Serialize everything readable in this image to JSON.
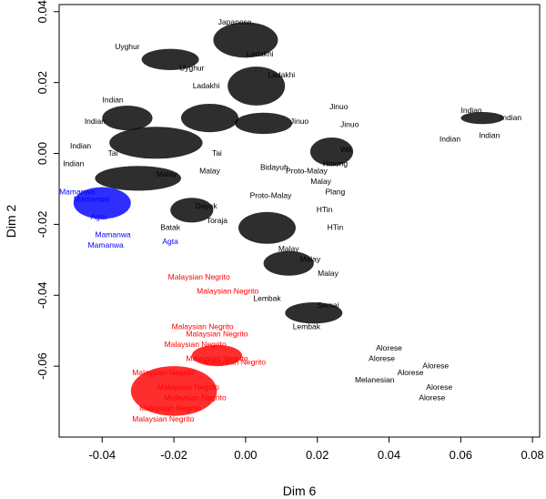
{
  "chart_data": {
    "type": "scatter",
    "xlabel": "Dim 6",
    "ylabel": "Dim 2",
    "xlim": [
      -0.052,
      0.082
    ],
    "ylim": [
      -0.08,
      0.042
    ],
    "x_ticks": [
      "-0.04",
      "-0.02",
      "0.00",
      "0.02",
      "0.04",
      "0.06",
      "0.08"
    ],
    "y_ticks": [
      "-0.06",
      "-0.04",
      "-0.02",
      "0.00",
      "0.02",
      "0.04"
    ],
    "x_tick_values": [
      -0.04,
      -0.02,
      0.0,
      0.02,
      0.04,
      0.06,
      0.08
    ],
    "y_tick_values": [
      -0.06,
      -0.04,
      -0.02,
      0.0,
      0.02,
      0.04
    ],
    "grid": false,
    "colors": {
      "black": "#000000",
      "blue": "#0000ff",
      "red": "#ff0000"
    },
    "points": [
      {
        "label": "Uyghur",
        "x": -0.033,
        "y": 0.03,
        "color": "black"
      },
      {
        "label": "Japanese",
        "x": -0.003,
        "y": 0.037,
        "color": "black"
      },
      {
        "label": "Uyghur",
        "x": -0.015,
        "y": 0.024,
        "color": "black"
      },
      {
        "label": "Ladakhi",
        "x": -0.011,
        "y": 0.019,
        "color": "black"
      },
      {
        "label": "Ladakhi",
        "x": 0.01,
        "y": 0.022,
        "color": "black"
      },
      {
        "label": "Ladakhi",
        "x": 0.004,
        "y": 0.028,
        "color": "black"
      },
      {
        "label": "Indian",
        "x": -0.037,
        "y": 0.015,
        "color": "black"
      },
      {
        "label": "Indian",
        "x": -0.042,
        "y": 0.009,
        "color": "black"
      },
      {
        "label": "Indian",
        "x": -0.046,
        "y": 0.002,
        "color": "black"
      },
      {
        "label": "Indian",
        "x": -0.048,
        "y": -0.003,
        "color": "black"
      },
      {
        "label": "Indian",
        "x": 0.063,
        "y": 0.012,
        "color": "black"
      },
      {
        "label": "Indian",
        "x": 0.057,
        "y": 0.004,
        "color": "black"
      },
      {
        "label": "Indian",
        "x": 0.068,
        "y": 0.005,
        "color": "black"
      },
      {
        "label": "Indian",
        "x": 0.074,
        "y": 0.01,
        "color": "black"
      },
      {
        "label": "Jinuo",
        "x": 0.026,
        "y": 0.013,
        "color": "black"
      },
      {
        "label": "Jinuo",
        "x": 0.015,
        "y": 0.009,
        "color": "black"
      },
      {
        "label": "Jinuo",
        "x": 0.029,
        "y": 0.008,
        "color": "black"
      },
      {
        "label": "Tai",
        "x": -0.037,
        "y": 0.0,
        "color": "black"
      },
      {
        "label": "Tai",
        "x": -0.008,
        "y": 0.0,
        "color": "black"
      },
      {
        "label": "Bidayuh",
        "x": 0.008,
        "y": -0.004,
        "color": "black"
      },
      {
        "label": "Malay",
        "x": -0.022,
        "y": -0.006,
        "color": "black"
      },
      {
        "label": "Malay",
        "x": -0.01,
        "y": -0.005,
        "color": "black"
      },
      {
        "label": "Proto-Malay",
        "x": 0.017,
        "y": -0.005,
        "color": "black"
      },
      {
        "label": "Malay",
        "x": 0.021,
        "y": -0.008,
        "color": "black"
      },
      {
        "label": "Wa",
        "x": 0.028,
        "y": 0.001,
        "color": "black"
      },
      {
        "label": "Hmong",
        "x": 0.025,
        "y": -0.003,
        "color": "black"
      },
      {
        "label": "Plang",
        "x": 0.025,
        "y": -0.011,
        "color": "black"
      },
      {
        "label": "HTin",
        "x": 0.022,
        "y": -0.016,
        "color": "black"
      },
      {
        "label": "HTin",
        "x": 0.025,
        "y": -0.021,
        "color": "black"
      },
      {
        "label": "Proto-Malay",
        "x": 0.007,
        "y": -0.012,
        "color": "black"
      },
      {
        "label": "Dayak",
        "x": -0.011,
        "y": -0.015,
        "color": "black"
      },
      {
        "label": "Toraja",
        "x": -0.008,
        "y": -0.019,
        "color": "black"
      },
      {
        "label": "Batak",
        "x": -0.021,
        "y": -0.021,
        "color": "black"
      },
      {
        "label": "Malay",
        "x": 0.012,
        "y": -0.027,
        "color": "black"
      },
      {
        "label": "Malay",
        "x": 0.018,
        "y": -0.03,
        "color": "black"
      },
      {
        "label": "Malay",
        "x": 0.023,
        "y": -0.034,
        "color": "black"
      },
      {
        "label": "Lembak",
        "x": 0.006,
        "y": -0.041,
        "color": "black"
      },
      {
        "label": "Semai",
        "x": 0.023,
        "y": -0.043,
        "color": "black"
      },
      {
        "label": "Lembak",
        "x": 0.017,
        "y": -0.049,
        "color": "black"
      },
      {
        "label": "Alorese",
        "x": 0.04,
        "y": -0.055,
        "color": "black"
      },
      {
        "label": "Alorese",
        "x": 0.038,
        "y": -0.058,
        "color": "black"
      },
      {
        "label": "Alorese",
        "x": 0.053,
        "y": -0.06,
        "color": "black"
      },
      {
        "label": "Melanesian",
        "x": 0.036,
        "y": -0.064,
        "color": "black"
      },
      {
        "label": "Alorese",
        "x": 0.054,
        "y": -0.066,
        "color": "black"
      },
      {
        "label": "Alorese",
        "x": 0.052,
        "y": -0.069,
        "color": "black"
      },
      {
        "label": "Alorese",
        "x": 0.046,
        "y": -0.062,
        "color": "black"
      },
      {
        "label": "Mamanwa",
        "x": -0.047,
        "y": -0.011,
        "color": "blue"
      },
      {
        "label": "Mamanwa",
        "x": -0.043,
        "y": -0.013,
        "color": "blue"
      },
      {
        "label": "Agta",
        "x": -0.041,
        "y": -0.018,
        "color": "blue"
      },
      {
        "label": "Mamanwa",
        "x": -0.037,
        "y": -0.023,
        "color": "blue"
      },
      {
        "label": "Mamanwa",
        "x": -0.039,
        "y": -0.026,
        "color": "blue"
      },
      {
        "label": "Agta",
        "x": -0.021,
        "y": -0.025,
        "color": "blue"
      },
      {
        "label": "Malaysian Negrito",
        "x": -0.013,
        "y": -0.035,
        "color": "red"
      },
      {
        "label": "Malaysian Negrito",
        "x": -0.005,
        "y": -0.039,
        "color": "red"
      },
      {
        "label": "Malaysian Negrito",
        "x": -0.012,
        "y": -0.049,
        "color": "red"
      },
      {
        "label": "Malaysian Negrito",
        "x": -0.008,
        "y": -0.051,
        "color": "red"
      },
      {
        "label": "Malaysian Negrito",
        "x": -0.014,
        "y": -0.054,
        "color": "red"
      },
      {
        "label": "Malaysian Negrito",
        "x": -0.008,
        "y": -0.058,
        "color": "red"
      },
      {
        "label": "Malaysian Negrito",
        "x": -0.003,
        "y": -0.059,
        "color": "red"
      },
      {
        "label": "Malaysian Negrito",
        "x": -0.023,
        "y": -0.062,
        "color": "red"
      },
      {
        "label": "Malaysian Negrito",
        "x": -0.016,
        "y": -0.066,
        "color": "red"
      },
      {
        "label": "Malaysian Negrito",
        "x": -0.014,
        "y": -0.069,
        "color": "red"
      },
      {
        "label": "Malaysian Negrito",
        "x": -0.021,
        "y": -0.072,
        "color": "red"
      },
      {
        "label": "Malaysian Negrito",
        "x": -0.023,
        "y": -0.075,
        "color": "red"
      }
    ]
  }
}
